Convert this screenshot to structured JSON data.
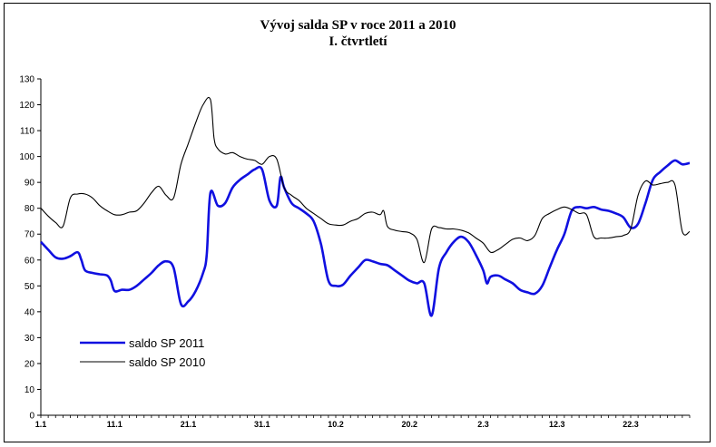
{
  "chart_data": {
    "type": "line",
    "title": "Vývoj salda SP v roce 2011 a 2010",
    "subtitle": "I. čtvrtletí",
    "ylim": [
      0,
      130
    ],
    "yticks": [
      0,
      10,
      20,
      30,
      40,
      50,
      60,
      70,
      80,
      90,
      100,
      110,
      120,
      130
    ],
    "xlim": [
      0,
      88
    ],
    "xtick_labels": [
      {
        "label": "1.1",
        "x": 0
      },
      {
        "label": "11.1",
        "x": 10
      },
      {
        "label": "21.1",
        "x": 20
      },
      {
        "label": "31.1",
        "x": 30
      },
      {
        "label": "10.2",
        "x": 40
      },
      {
        "label": "20.2",
        "x": 50
      },
      {
        "label": "2.3",
        "x": 60
      },
      {
        "label": "12.3",
        "x": 70
      },
      {
        "label": "22.3",
        "x": 80
      }
    ],
    "legend_position": "bottom-left",
    "grid": false,
    "series": [
      {
        "name": "saldo SP 2011",
        "color": "#1010e0",
        "points": [
          [
            0,
            67
          ],
          [
            1,
            64
          ],
          [
            2,
            61
          ],
          [
            3,
            60.5
          ],
          [
            4,
            61.5
          ],
          [
            5,
            63
          ],
          [
            5.5,
            60
          ],
          [
            6,
            56
          ],
          [
            7,
            55
          ],
          [
            8,
            54.5
          ],
          [
            9,
            54
          ],
          [
            9.5,
            52
          ],
          [
            10,
            48
          ],
          [
            11,
            48.5
          ],
          [
            12,
            48.5
          ],
          [
            13,
            50
          ],
          [
            14,
            52.5
          ],
          [
            15,
            55
          ],
          [
            16,
            58
          ],
          [
            17,
            59.5
          ],
          [
            18,
            57
          ],
          [
            19,
            43
          ],
          [
            20,
            44
          ],
          [
            21,
            48
          ],
          [
            22,
            55
          ],
          [
            22.5,
            62
          ],
          [
            23,
            86
          ],
          [
            24,
            81
          ],
          [
            25,
            82
          ],
          [
            26,
            88
          ],
          [
            27,
            91
          ],
          [
            28,
            93
          ],
          [
            29,
            95
          ],
          [
            30,
            95
          ],
          [
            31,
            83
          ],
          [
            32,
            81
          ],
          [
            32.5,
            92
          ],
          [
            33,
            88
          ],
          [
            34,
            82
          ],
          [
            35,
            80
          ],
          [
            36,
            78
          ],
          [
            37,
            75
          ],
          [
            38,
            66
          ],
          [
            39,
            52
          ],
          [
            40,
            50
          ],
          [
            41,
            50.5
          ],
          [
            42,
            54
          ],
          [
            43,
            57
          ],
          [
            44,
            60
          ],
          [
            45,
            59.5
          ],
          [
            46,
            58.5
          ],
          [
            47,
            58
          ],
          [
            48,
            56
          ],
          [
            49,
            54
          ],
          [
            50,
            52
          ],
          [
            51,
            51
          ],
          [
            52,
            51
          ],
          [
            53,
            38.5
          ],
          [
            54,
            57
          ],
          [
            55,
            63
          ],
          [
            56,
            67
          ],
          [
            57,
            69
          ],
          [
            58,
            67
          ],
          [
            59,
            62
          ],
          [
            60,
            56
          ],
          [
            60.5,
            51
          ],
          [
            61,
            53.5
          ],
          [
            62,
            54
          ],
          [
            63,
            52.5
          ],
          [
            64,
            51
          ],
          [
            65,
            48.5
          ],
          [
            66,
            47.5
          ],
          [
            67,
            47
          ],
          [
            68,
            50
          ],
          [
            69,
            57
          ],
          [
            70,
            64
          ],
          [
            71,
            70
          ],
          [
            72,
            79
          ],
          [
            73,
            80.5
          ],
          [
            74,
            80
          ],
          [
            75,
            80.5
          ],
          [
            76,
            79.5
          ],
          [
            77,
            79
          ],
          [
            78,
            78
          ],
          [
            79,
            76.5
          ],
          [
            80,
            72.5
          ],
          [
            81,
            74
          ],
          [
            82,
            82
          ],
          [
            83,
            91
          ],
          [
            84,
            94
          ],
          [
            85,
            96.5
          ],
          [
            86,
            98.5
          ],
          [
            87,
            97
          ],
          [
            88,
            97.5
          ]
        ]
      },
      {
        "name": "saldo SP 2010",
        "color": "#000000",
        "points": [
          [
            0,
            80
          ],
          [
            1,
            77
          ],
          [
            2,
            74.5
          ],
          [
            3,
            73
          ],
          [
            4,
            84
          ],
          [
            5,
            85.5
          ],
          [
            6,
            85.5
          ],
          [
            7,
            84
          ],
          [
            8,
            81
          ],
          [
            9,
            79
          ],
          [
            10,
            77.5
          ],
          [
            11,
            77.5
          ],
          [
            12,
            78.5
          ],
          [
            13,
            79
          ],
          [
            14,
            82
          ],
          [
            15,
            86
          ],
          [
            16,
            88.5
          ],
          [
            17,
            85
          ],
          [
            18,
            84
          ],
          [
            19,
            97
          ],
          [
            20,
            105
          ],
          [
            21,
            113
          ],
          [
            22,
            120
          ],
          [
            23,
            122
          ],
          [
            23.5,
            107
          ],
          [
            24,
            103
          ],
          [
            25,
            101
          ],
          [
            26,
            101.5
          ],
          [
            27,
            100
          ],
          [
            28,
            99
          ],
          [
            29,
            98.5
          ],
          [
            30,
            97
          ],
          [
            31,
            100
          ],
          [
            32,
            99
          ],
          [
            33,
            88
          ],
          [
            34,
            85
          ],
          [
            35,
            83
          ],
          [
            36,
            80
          ],
          [
            37,
            78
          ],
          [
            38,
            76
          ],
          [
            39,
            74
          ],
          [
            40,
            73.5
          ],
          [
            41,
            73.5
          ],
          [
            42,
            75
          ],
          [
            43,
            76
          ],
          [
            44,
            78
          ],
          [
            45,
            78.5
          ],
          [
            46,
            77.5
          ],
          [
            46.5,
            79
          ],
          [
            47,
            73
          ],
          [
            48,
            71.5
          ],
          [
            49,
            71
          ],
          [
            50,
            70.5
          ],
          [
            51,
            68
          ],
          [
            52,
            59
          ],
          [
            53,
            72
          ],
          [
            54,
            72.5
          ],
          [
            55,
            72
          ],
          [
            56,
            72
          ],
          [
            57,
            71.5
          ],
          [
            58,
            70.5
          ],
          [
            59,
            68.5
          ],
          [
            60,
            66.5
          ],
          [
            61,
            63
          ],
          [
            62,
            64
          ],
          [
            63,
            66
          ],
          [
            64,
            68
          ],
          [
            65,
            68.5
          ],
          [
            66,
            67.5
          ],
          [
            67,
            69.5
          ],
          [
            68,
            76
          ],
          [
            69,
            78
          ],
          [
            70,
            79.5
          ],
          [
            71,
            80.5
          ],
          [
            72,
            79.5
          ],
          [
            73,
            78
          ],
          [
            74,
            77.5
          ],
          [
            75,
            69
          ],
          [
            76,
            68.5
          ],
          [
            77,
            68.5
          ],
          [
            78,
            69
          ],
          [
            79,
            69.5
          ],
          [
            80,
            72
          ],
          [
            81,
            85
          ],
          [
            82,
            90.5
          ],
          [
            83,
            89
          ],
          [
            84,
            89.5
          ],
          [
            85,
            90
          ],
          [
            86,
            89
          ],
          [
            87,
            71
          ],
          [
            88,
            71
          ]
        ]
      }
    ]
  }
}
